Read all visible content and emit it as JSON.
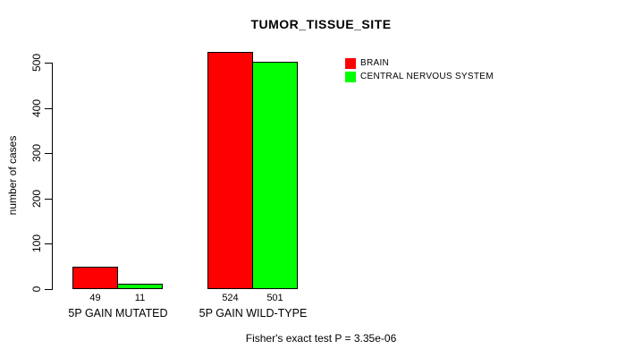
{
  "title": "TUMOR_TISSUE_SITE",
  "chart_data": {
    "type": "bar",
    "title": "TUMOR_TISSUE_SITE",
    "xlabel": "",
    "ylabel": "number of cases",
    "categories": [
      "5P GAIN MUTATED",
      "5P GAIN WILD-TYPE"
    ],
    "series": [
      {
        "name": "BRAIN",
        "color": "#FF0000",
        "values": [
          49,
          524
        ]
      },
      {
        "name": "CENTRAL NERVOUS SYSTEM",
        "color": "#00FF00",
        "values": [
          11,
          501
        ]
      }
    ],
    "bar_value_labels": [
      "49",
      "11",
      "524",
      "501"
    ],
    "ylim": [
      0,
      500
    ],
    "yticks": [
      0,
      100,
      200,
      300,
      400,
      500
    ],
    "grid": false,
    "legend_position": "inside-top-right",
    "annotation": "Fisher's exact test P = 3.35e-06"
  },
  "colors": {
    "background": "#FFFFFF",
    "bar_border": "#000000",
    "axis": "#000000",
    "text": "#000000",
    "series_brain": "#FF0000",
    "series_cns": "#00FF00"
  }
}
